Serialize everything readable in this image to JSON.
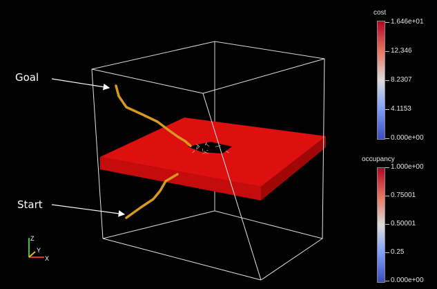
{
  "annotations": {
    "goal": "Goal",
    "start": "Start"
  },
  "colorbars": {
    "cost": {
      "title": "cost",
      "ticks": [
        "1.646e+01",
        "12.346",
        "8.2307",
        "4.1153",
        "0.000e+00"
      ],
      "colors": [
        "#b40426",
        "#e8755e",
        "#dddcdc",
        "#7b9ff9",
        "#3b4cc0"
      ]
    },
    "occupancy": {
      "title": "occupancy",
      "ticks": [
        "1.000e+00",
        "0.75001",
        "0.50001",
        "0.25",
        "0.000e+00"
      ],
      "colors": [
        "#b40426",
        "#e8755e",
        "#dddcdc",
        "#7b9ff9",
        "#3b4cc0"
      ]
    }
  },
  "orientation_axes": {
    "x": "X",
    "y": "Y",
    "z": "Z"
  },
  "scene": {
    "obstacle_color": "#dd0f0f",
    "path_color": "#d89a1e",
    "box_color": "#d9d9d9"
  }
}
